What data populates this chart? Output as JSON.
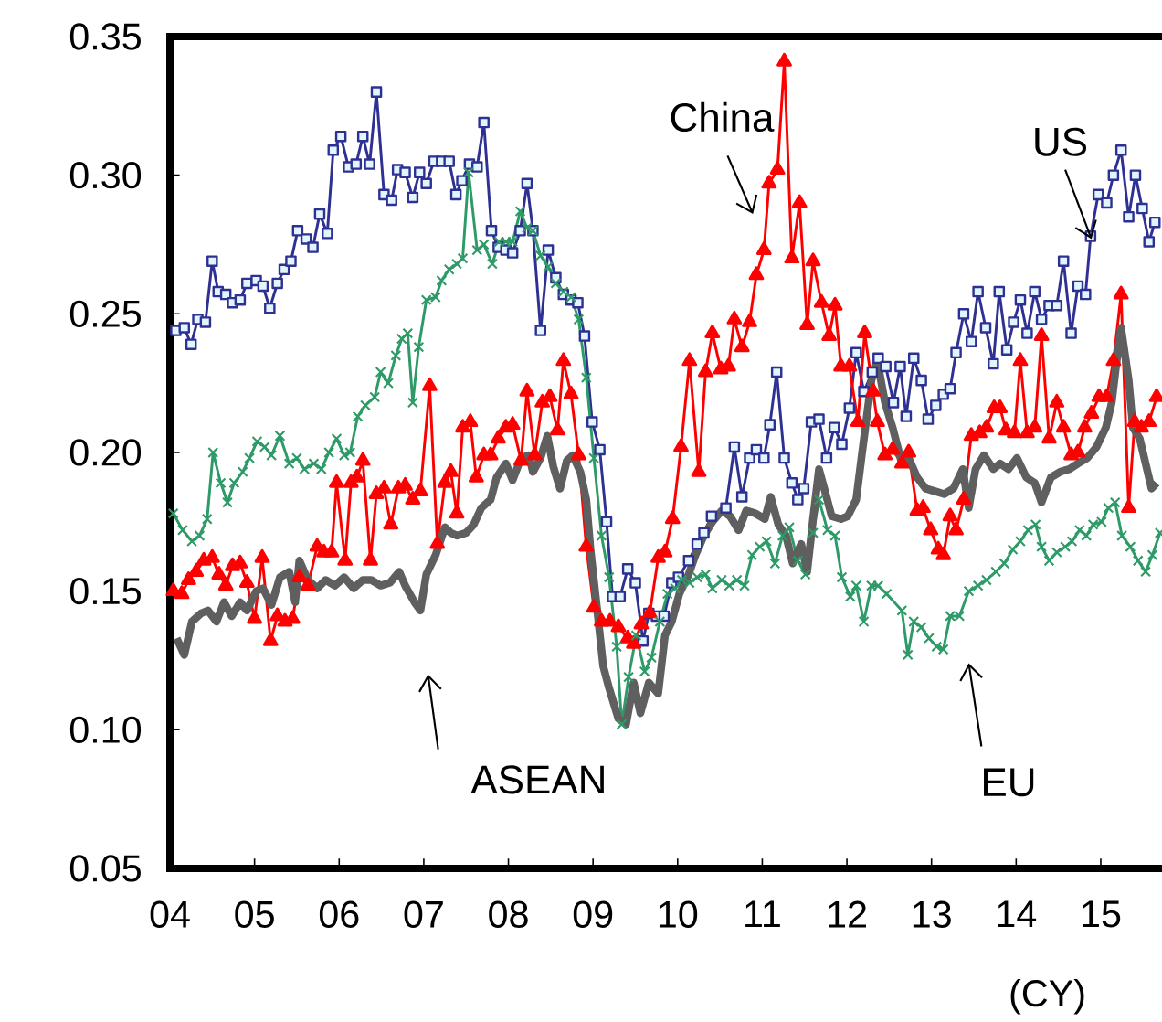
{
  "chart_data": {
    "type": "line",
    "xlabel": "(CY)",
    "xlim": [
      2004,
      2015.81
    ],
    "ylim": [
      0.05,
      0.35
    ],
    "xticks": [
      {
        "value": 2004,
        "label": "04"
      },
      {
        "value": 2005,
        "label": "05"
      },
      {
        "value": 2006,
        "label": "06"
      },
      {
        "value": 2007,
        "label": "07"
      },
      {
        "value": 2008,
        "label": "08"
      },
      {
        "value": 2009,
        "label": "09"
      },
      {
        "value": 2010,
        "label": "10"
      },
      {
        "value": 2011,
        "label": "11"
      },
      {
        "value": 2012,
        "label": "12"
      },
      {
        "value": 2013,
        "label": "13"
      },
      {
        "value": 2014,
        "label": "14"
      },
      {
        "value": 2015,
        "label": "15"
      }
    ],
    "yticks": [
      {
        "value": 0.05,
        "label": "0.05"
      },
      {
        "value": 0.1,
        "label": "0.10"
      },
      {
        "value": 0.15,
        "label": "0.15"
      },
      {
        "value": 0.2,
        "label": "0.20"
      },
      {
        "value": 0.25,
        "label": "0.25"
      },
      {
        "value": 0.3,
        "label": "0.30"
      },
      {
        "value": 0.35,
        "label": "0.35"
      }
    ],
    "series": [
      {
        "name": "US",
        "color": "#2e3192",
        "marker": "square",
        "x": [
          2004.07,
          2004.17,
          2004.25,
          2004.33,
          2004.42,
          2004.5,
          2004.57,
          2004.66,
          2004.74,
          2004.83,
          2004.91,
          2005.02,
          2005.1,
          2005.18,
          2005.27,
          2005.35,
          2005.43,
          2005.51,
          2005.61,
          2005.69,
          2005.77,
          2005.86,
          2005.93,
          2006.02,
          2006.11,
          2006.2,
          2006.28,
          2006.36,
          2006.44,
          2006.53,
          2006.62,
          2006.69,
          2006.78,
          2006.87,
          2006.95,
          2007.03,
          2007.12,
          2007.21,
          2007.3,
          2007.38,
          2007.45,
          2007.54,
          2007.63,
          2007.71,
          2007.8,
          2007.88,
          2007.97,
          2008.05,
          2008.14,
          2008.22,
          2008.29,
          2008.38,
          2008.47,
          2008.56,
          2008.65,
          2008.74,
          2008.82,
          2008.9,
          2008.99,
          2009.08,
          2009.16,
          2009.23,
          2009.32,
          2009.41,
          2009.5,
          2009.59,
          2009.66,
          2009.75,
          2009.84,
          2009.93,
          2010.01,
          2010.13,
          2010.23,
          2010.31,
          2010.4,
          2010.57,
          2010.67,
          2010.76,
          2010.85,
          2010.93,
          2011.02,
          2011.09,
          2011.17,
          2011.26,
          2011.35,
          2011.42,
          2011.49,
          2011.58,
          2011.67,
          2011.76,
          2011.85,
          2011.94,
          2012.03,
          2012.11,
          2012.2,
          2012.3,
          2012.37,
          2012.46,
          2012.55,
          2012.63,
          2012.7,
          2012.79,
          2012.88,
          2012.96,
          2013.05,
          2013.14,
          2013.22,
          2013.29,
          2013.38,
          2013.47,
          2013.55,
          2013.64,
          2013.73,
          2013.8,
          2013.89,
          2013.97,
          2014.05,
          2014.13,
          2014.22,
          2014.3,
          2014.39,
          2014.48,
          2014.56,
          2014.65,
          2014.73,
          2014.82,
          2014.88,
          2014.97,
          2015.07,
          2015.15,
          2015.24,
          2015.33,
          2015.41,
          2015.49,
          2015.57,
          2015.64
        ],
        "values": [
          0.244,
          0.245,
          0.239,
          0.248,
          0.247,
          0.269,
          0.258,
          0.257,
          0.254,
          0.255,
          0.261,
          0.262,
          0.26,
          0.252,
          0.261,
          0.266,
          0.269,
          0.28,
          0.277,
          0.274,
          0.286,
          0.279,
          0.309,
          0.314,
          0.303,
          0.304,
          0.314,
          0.304,
          0.33,
          0.293,
          0.291,
          0.302,
          0.301,
          0.292,
          0.301,
          0.297,
          0.305,
          0.305,
          0.305,
          0.293,
          0.298,
          0.304,
          0.303,
          0.319,
          0.28,
          0.274,
          0.273,
          0.272,
          0.28,
          0.297,
          0.28,
          0.244,
          0.273,
          0.263,
          0.257,
          0.255,
          0.254,
          0.242,
          0.211,
          0.201,
          0.175,
          0.148,
          0.148,
          0.158,
          0.153,
          0.132,
          0.142,
          0.141,
          0.141,
          0.153,
          0.155,
          0.161,
          0.167,
          0.171,
          0.177,
          0.18,
          0.202,
          0.184,
          0.198,
          0.201,
          0.198,
          0.21,
          0.229,
          0.198,
          0.189,
          0.183,
          0.187,
          0.211,
          0.212,
          0.198,
          0.209,
          0.203,
          0.216,
          0.236,
          0.222,
          0.229,
          0.234,
          0.231,
          0.218,
          0.231,
          0.213,
          0.234,
          0.226,
          0.212,
          0.217,
          0.221,
          0.223,
          0.236,
          0.25,
          0.24,
          0.258,
          0.245,
          0.232,
          0.258,
          0.237,
          0.247,
          0.255,
          0.243,
          0.258,
          0.248,
          0.253,
          0.253,
          0.269,
          0.243,
          0.26,
          0.257,
          0.278,
          0.293,
          0.29,
          0.3,
          0.309,
          0.285,
          0.3,
          0.288,
          0.276,
          0.283
        ]
      },
      {
        "name": "China",
        "color": "#ff0000",
        "marker": "triangle",
        "x": [
          2004.04,
          2004.14,
          2004.22,
          2004.31,
          2004.4,
          2004.5,
          2004.58,
          2004.66,
          2004.74,
          2004.83,
          2004.91,
          2005.0,
          2005.09,
          2005.19,
          2005.27,
          2005.36,
          2005.45,
          2005.53,
          2005.63,
          2005.74,
          2005.82,
          2005.91,
          2005.97,
          2006.07,
          2006.14,
          2006.21,
          2006.28,
          2006.37,
          2006.44,
          2006.53,
          2006.61,
          2006.7,
          2006.78,
          2006.87,
          2006.96,
          2007.07,
          2007.16,
          2007.25,
          2007.32,
          2007.39,
          2007.46,
          2007.55,
          2007.62,
          2007.71,
          2007.79,
          2007.88,
          2007.97,
          2008.05,
          2008.15,
          2008.22,
          2008.31,
          2008.4,
          2008.49,
          2008.58,
          2008.65,
          2008.74,
          2008.83,
          2008.92,
          2009.01,
          2009.1,
          2009.2,
          2009.3,
          2009.41,
          2009.48,
          2009.57,
          2009.67,
          2009.77,
          2009.85,
          2009.94,
          2010.04,
          2010.14,
          2010.25,
          2010.33,
          2010.41,
          2010.51,
          2010.6,
          2010.67,
          2010.76,
          2010.85,
          2010.93,
          2011.02,
          2011.08,
          2011.18,
          2011.26,
          2011.35,
          2011.44,
          2011.53,
          2011.6,
          2011.7,
          2011.79,
          2011.86,
          2011.93,
          2012.03,
          2012.13,
          2012.21,
          2012.31,
          2012.36,
          2012.45,
          2012.54,
          2012.65,
          2012.73,
          2012.83,
          2012.9,
          2012.99,
          2013.08,
          2013.14,
          2013.22,
          2013.29,
          2013.38,
          2013.47,
          2013.57,
          2013.65,
          2013.74,
          2013.81,
          2013.88,
          2013.98,
          2014.05,
          2014.13,
          2014.22,
          2014.3,
          2014.39,
          2014.48,
          2014.56,
          2014.65,
          2014.73,
          2014.81,
          2014.89,
          2014.98,
          2015.07,
          2015.15,
          2015.24,
          2015.33,
          2015.4,
          2015.48,
          2015.57,
          2015.66
        ],
        "values": [
          0.15,
          0.149,
          0.154,
          0.157,
          0.161,
          0.162,
          0.156,
          0.152,
          0.159,
          0.16,
          0.153,
          0.14,
          0.162,
          0.132,
          0.141,
          0.139,
          0.14,
          0.155,
          0.152,
          0.166,
          0.164,
          0.164,
          0.189,
          0.161,
          0.189,
          0.191,
          0.197,
          0.161,
          0.185,
          0.187,
          0.174,
          0.187,
          0.188,
          0.183,
          0.186,
          0.224,
          0.167,
          0.189,
          0.193,
          0.178,
          0.209,
          0.211,
          0.191,
          0.199,
          0.199,
          0.205,
          0.209,
          0.21,
          0.197,
          0.222,
          0.199,
          0.218,
          0.22,
          0.208,
          0.233,
          0.221,
          0.199,
          0.166,
          0.144,
          0.139,
          0.139,
          0.137,
          0.133,
          0.131,
          0.138,
          0.142,
          0.162,
          0.164,
          0.176,
          0.202,
          0.233,
          0.193,
          0.229,
          0.243,
          0.23,
          0.231,
          0.248,
          0.238,
          0.247,
          0.264,
          0.273,
          0.297,
          0.302,
          0.341,
          0.27,
          0.29,
          0.246,
          0.269,
          0.254,
          0.242,
          0.253,
          0.231,
          0.231,
          0.211,
          0.243,
          0.222,
          0.211,
          0.199,
          0.201,
          0.196,
          0.2,
          0.179,
          0.18,
          0.172,
          0.165,
          0.163,
          0.177,
          0.172,
          0.183,
          0.206,
          0.207,
          0.209,
          0.216,
          0.216,
          0.208,
          0.207,
          0.233,
          0.207,
          0.209,
          0.242,
          0.205,
          0.218,
          0.209,
          0.199,
          0.2,
          0.209,
          0.214,
          0.22,
          0.22,
          0.233,
          0.257,
          0.18,
          0.211,
          0.209,
          0.211,
          0.22
        ]
      },
      {
        "name": "EU",
        "color": "#2e9a68",
        "marker": "cross",
        "x": [
          2004.04,
          2004.15,
          2004.26,
          2004.35,
          2004.44,
          2004.51,
          2004.6,
          2004.68,
          2004.76,
          2004.86,
          2004.94,
          2005.03,
          2005.12,
          2005.2,
          2005.3,
          2005.41,
          2005.5,
          2005.59,
          2005.7,
          2005.79,
          2005.88,
          2005.97,
          2006.06,
          2006.13,
          2006.22,
          2006.31,
          2006.42,
          2006.49,
          2006.58,
          2006.67,
          2006.74,
          2006.81,
          2006.87,
          2006.94,
          2007.03,
          2007.14,
          2007.21,
          2007.3,
          2007.39,
          2007.46,
          2007.53,
          2007.63,
          2007.71,
          2007.81,
          2007.89,
          2007.97,
          2008.05,
          2008.14,
          2008.22,
          2008.29,
          2008.38,
          2008.47,
          2008.56,
          2008.65,
          2008.74,
          2008.83,
          2008.92,
          2009.01,
          2009.1,
          2009.19,
          2009.28,
          2009.34,
          2009.42,
          2009.51,
          2009.61,
          2009.69,
          2009.79,
          2009.88,
          2009.97,
          2010.05,
          2010.14,
          2010.23,
          2010.33,
          2010.41,
          2010.52,
          2010.61,
          2010.7,
          2010.79,
          2010.88,
          2010.97,
          2011.05,
          2011.15,
          2011.24,
          2011.32,
          2011.42,
          2011.51,
          2011.6,
          2011.67,
          2011.77,
          2011.86,
          2011.94,
          2012.04,
          2012.11,
          2012.2,
          2012.29,
          2012.37,
          2012.47,
          2012.65,
          2012.72,
          2012.79,
          2012.88,
          2012.97,
          2013.06,
          2013.14,
          2013.22,
          2013.33,
          2013.44,
          2013.55,
          2013.65,
          2013.76,
          2013.86,
          2013.96,
          2014.05,
          2014.14,
          2014.23,
          2014.3,
          2014.39,
          2014.48,
          2014.58,
          2014.66,
          2014.75,
          2014.83,
          2014.91,
          2015.01,
          2015.09,
          2015.17,
          2015.25,
          2015.35,
          2015.44,
          2015.53,
          2015.61,
          2015.7
        ],
        "values": [
          0.178,
          0.172,
          0.168,
          0.17,
          0.176,
          0.2,
          0.189,
          0.182,
          0.189,
          0.193,
          0.198,
          0.204,
          0.202,
          0.199,
          0.206,
          0.196,
          0.198,
          0.194,
          0.196,
          0.194,
          0.2,
          0.205,
          0.199,
          0.2,
          0.213,
          0.217,
          0.22,
          0.229,
          0.225,
          0.235,
          0.241,
          0.243,
          0.218,
          0.238,
          0.255,
          0.256,
          0.262,
          0.266,
          0.268,
          0.27,
          0.301,
          0.273,
          0.275,
          0.268,
          0.276,
          0.276,
          0.276,
          0.287,
          0.281,
          0.28,
          0.271,
          0.267,
          0.261,
          0.258,
          0.256,
          0.248,
          0.227,
          0.198,
          0.17,
          0.155,
          0.13,
          0.102,
          0.119,
          0.134,
          0.121,
          0.126,
          0.139,
          0.149,
          0.151,
          0.154,
          0.153,
          0.155,
          0.156,
          0.151,
          0.154,
          0.152,
          0.154,
          0.152,
          0.163,
          0.166,
          0.168,
          0.16,
          0.17,
          0.173,
          0.161,
          0.156,
          0.171,
          0.183,
          0.172,
          0.17,
          0.155,
          0.148,
          0.152,
          0.139,
          0.152,
          0.152,
          0.149,
          0.143,
          0.127,
          0.139,
          0.137,
          0.133,
          0.13,
          0.129,
          0.141,
          0.141,
          0.15,
          0.152,
          0.154,
          0.157,
          0.16,
          0.165,
          0.168,
          0.172,
          0.174,
          0.166,
          0.161,
          0.164,
          0.166,
          0.168,
          0.172,
          0.17,
          0.174,
          0.175,
          0.18,
          0.182,
          0.17,
          0.166,
          0.161,
          0.157,
          0.163,
          0.171
        ]
      },
      {
        "name": "ASEAN",
        "color": "#5f5f5f",
        "marker": "none",
        "x": [
          2004.08,
          2004.17,
          2004.26,
          2004.37,
          2004.45,
          2004.55,
          2004.64,
          2004.73,
          2004.83,
          2004.91,
          2005.02,
          2005.1,
          2005.2,
          2005.3,
          2005.41,
          2005.48,
          2005.53,
          2005.63,
          2005.74,
          2005.84,
          2005.95,
          2006.06,
          2006.17,
          2006.28,
          2006.38,
          2006.49,
          2006.6,
          2006.71,
          2006.78,
          2006.89,
          2006.96,
          2007.03,
          2007.14,
          2007.25,
          2007.32,
          2007.39,
          2007.5,
          2007.59,
          2007.68,
          2007.79,
          2007.86,
          2007.97,
          2008.05,
          2008.15,
          2008.24,
          2008.29,
          2008.38,
          2008.46,
          2008.53,
          2008.61,
          2008.69,
          2008.76,
          2008.85,
          2008.92,
          2008.97,
          2009.05,
          2009.12,
          2009.19,
          2009.3,
          2009.39,
          2009.48,
          2009.56,
          2009.66,
          2009.77,
          2009.85,
          2009.93,
          2010.02,
          2010.13,
          2010.21,
          2010.31,
          2010.41,
          2010.52,
          2010.62,
          2010.72,
          2010.81,
          2010.92,
          2011.03,
          2011.1,
          2011.19,
          2011.28,
          2011.36,
          2011.46,
          2011.53,
          2011.6,
          2011.67,
          2011.75,
          2011.82,
          2011.93,
          2012.01,
          2012.11,
          2012.18,
          2012.29,
          2012.36,
          2012.45,
          2012.54,
          2012.65,
          2012.73,
          2012.83,
          2012.93,
          2013.04,
          2013.15,
          2013.26,
          2013.37,
          2013.44,
          2013.52,
          2013.62,
          2013.73,
          2013.81,
          2013.91,
          2014.01,
          2014.12,
          2014.22,
          2014.3,
          2014.41,
          2014.52,
          2014.63,
          2014.73,
          2014.84,
          2014.95,
          2015.06,
          2015.13,
          2015.18,
          2015.24,
          2015.33,
          2015.38,
          2015.46,
          2015.53,
          2015.6,
          2015.66
        ],
        "values": [
          0.133,
          0.127,
          0.139,
          0.142,
          0.143,
          0.139,
          0.146,
          0.141,
          0.146,
          0.143,
          0.15,
          0.151,
          0.145,
          0.155,
          0.157,
          0.146,
          0.161,
          0.154,
          0.151,
          0.154,
          0.152,
          0.155,
          0.151,
          0.154,
          0.154,
          0.152,
          0.153,
          0.157,
          0.152,
          0.146,
          0.143,
          0.156,
          0.163,
          0.173,
          0.171,
          0.17,
          0.171,
          0.174,
          0.18,
          0.183,
          0.191,
          0.196,
          0.19,
          0.198,
          0.199,
          0.193,
          0.198,
          0.206,
          0.195,
          0.187,
          0.197,
          0.199,
          0.193,
          0.183,
          0.165,
          0.143,
          0.123,
          0.115,
          0.104,
          0.102,
          0.117,
          0.106,
          0.117,
          0.113,
          0.134,
          0.139,
          0.149,
          0.156,
          0.163,
          0.17,
          0.175,
          0.179,
          0.177,
          0.172,
          0.179,
          0.178,
          0.176,
          0.184,
          0.174,
          0.17,
          0.16,
          0.167,
          0.157,
          0.176,
          0.194,
          0.185,
          0.177,
          0.176,
          0.177,
          0.183,
          0.2,
          0.226,
          0.233,
          0.218,
          0.209,
          0.196,
          0.198,
          0.191,
          0.187,
          0.186,
          0.185,
          0.187,
          0.194,
          0.18,
          0.194,
          0.199,
          0.194,
          0.196,
          0.194,
          0.198,
          0.191,
          0.189,
          0.182,
          0.191,
          0.193,
          0.194,
          0.196,
          0.198,
          0.202,
          0.209,
          0.218,
          0.231,
          0.245,
          0.226,
          0.209,
          0.205,
          0.196,
          0.187,
          0.189
        ]
      }
    ]
  }
}
